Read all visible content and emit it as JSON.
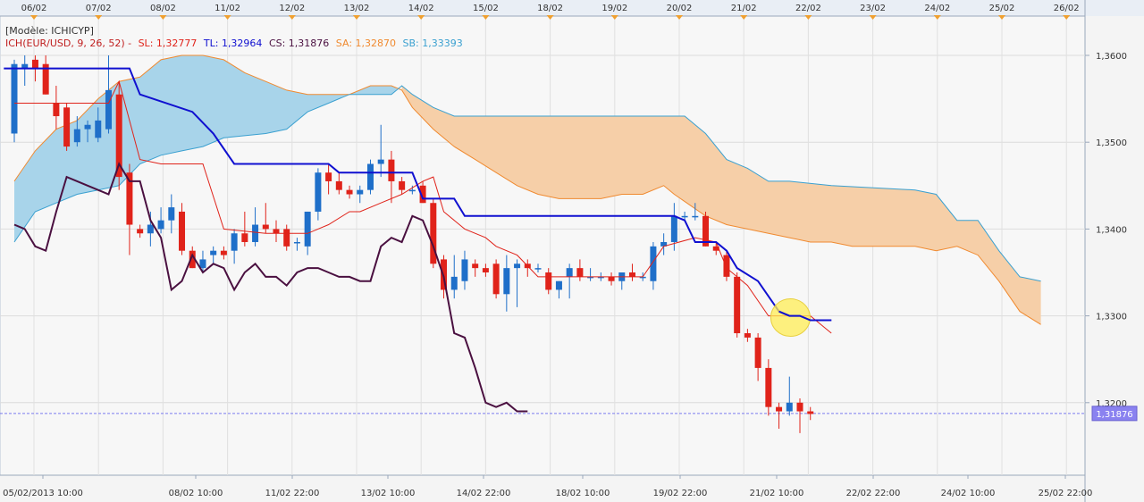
{
  "chart_data": {
    "type": "candlestick",
    "header": {
      "model_line": "[Modèle: ICHICYP]",
      "ich": "ICH(EUR/USD, 9, 26, 52) -",
      "sl": "SL: 1,32777",
      "tl": "TL: 1,32964",
      "cs": "CS: 1,31876",
      "sa": "SA: 1,32870",
      "sb": "SB: 1,33393"
    },
    "top_axis_labels": [
      "06/02",
      "07/02",
      "08/02",
      "11/02",
      "12/02",
      "13/02",
      "14/02",
      "15/02",
      "18/02",
      "19/02",
      "20/02",
      "21/02",
      "22/02",
      "23/02",
      "24/02",
      "25/02",
      "26/02"
    ],
    "bottom_axis_labels": [
      "05/02/2013 10:00",
      "08/02 10:00",
      "11/02 22:00",
      "13/02 10:00",
      "14/02 22:00",
      "18/02 10:00",
      "19/02 22:00",
      "21/02 10:00",
      "22/02 22:00",
      "24/02 10:00",
      "25/02 22:00"
    ],
    "y_ticks": [
      "1,3600",
      "1,3500",
      "1,3400",
      "1,3300",
      "1,3200"
    ],
    "y_range": [
      1.312,
      1.3665
    ],
    "last_price_label": "1,31876",
    "colors": {
      "up": "#1f6fc9",
      "down": "#e0231a",
      "tenkan": "#e0231a",
      "kijun": "#1010d0",
      "chikou": "#4a1040",
      "senkou_a": "#f08a30",
      "senkou_b": "#3aa0d0",
      "cloud_bull": "#a8d4ea",
      "cloud_bear": "#f6cfa8",
      "highlight": "#ffee55"
    },
    "candles": [
      [
        1.351,
        1.3595,
        1.35,
        1.359
      ],
      [
        1.3585,
        1.36,
        1.3565,
        1.359
      ],
      [
        1.3595,
        1.36,
        1.357,
        1.3585
      ],
      [
        1.359,
        1.36,
        1.3555,
        1.3555
      ],
      [
        1.3545,
        1.3565,
        1.3515,
        1.353
      ],
      [
        1.354,
        1.3545,
        1.349,
        1.3495
      ],
      [
        1.35,
        1.353,
        1.3495,
        1.3515
      ],
      [
        1.3515,
        1.3525,
        1.35,
        1.352
      ],
      [
        1.3505,
        1.354,
        1.35,
        1.3525
      ],
      [
        1.3515,
        1.36,
        1.351,
        1.356
      ],
      [
        1.3555,
        1.357,
        1.3445,
        1.346
      ],
      [
        1.3465,
        1.3475,
        1.337,
        1.3405
      ],
      [
        1.34,
        1.3405,
        1.339,
        1.3395
      ],
      [
        1.3395,
        1.342,
        1.338,
        1.3405
      ],
      [
        1.34,
        1.3425,
        1.3395,
        1.341
      ],
      [
        1.341,
        1.344,
        1.3395,
        1.3425
      ],
      [
        1.342,
        1.343,
        1.337,
        1.3375
      ],
      [
        1.3375,
        1.338,
        1.3355,
        1.3355
      ],
      [
        1.3355,
        1.3375,
        1.335,
        1.3365
      ],
      [
        1.337,
        1.338,
        1.336,
        1.3375
      ],
      [
        1.3375,
        1.338,
        1.3365,
        1.337
      ],
      [
        1.3375,
        1.34,
        1.336,
        1.3395
      ],
      [
        1.3395,
        1.342,
        1.338,
        1.3385
      ],
      [
        1.3385,
        1.3425,
        1.338,
        1.3405
      ],
      [
        1.3405,
        1.343,
        1.3395,
        1.34
      ],
      [
        1.34,
        1.341,
        1.3385,
        1.3395
      ],
      [
        1.34,
        1.3405,
        1.3375,
        1.338
      ],
      [
        1.3385,
        1.339,
        1.3375,
        1.3385
      ],
      [
        1.338,
        1.342,
        1.337,
        1.342
      ],
      [
        1.342,
        1.347,
        1.341,
        1.3465
      ],
      [
        1.3465,
        1.3475,
        1.344,
        1.3455
      ],
      [
        1.3455,
        1.3465,
        1.344,
        1.3445
      ],
      [
        1.3445,
        1.345,
        1.3435,
        1.344
      ],
      [
        1.344,
        1.345,
        1.343,
        1.3445
      ],
      [
        1.3445,
        1.348,
        1.344,
        1.3475
      ],
      [
        1.3475,
        1.352,
        1.346,
        1.348
      ],
      [
        1.348,
        1.349,
        1.343,
        1.3455
      ],
      [
        1.3455,
        1.346,
        1.344,
        1.3445
      ],
      [
        1.3445,
        1.345,
        1.344,
        1.3445
      ],
      [
        1.345,
        1.3455,
        1.343,
        1.343
      ],
      [
        1.343,
        1.3435,
        1.3355,
        1.336
      ],
      [
        1.3365,
        1.337,
        1.332,
        1.333
      ],
      [
        1.333,
        1.337,
        1.332,
        1.3345
      ],
      [
        1.334,
        1.3375,
        1.333,
        1.3365
      ],
      [
        1.336,
        1.3365,
        1.3345,
        1.3355
      ],
      [
        1.3355,
        1.336,
        1.3345,
        1.335
      ],
      [
        1.336,
        1.3365,
        1.332,
        1.3325
      ],
      [
        1.3325,
        1.337,
        1.3305,
        1.3355
      ],
      [
        1.3355,
        1.3365,
        1.331,
        1.336
      ],
      [
        1.336,
        1.3365,
        1.3345,
        1.3355
      ],
      [
        1.3355,
        1.336,
        1.335,
        1.3355
      ],
      [
        1.335,
        1.3355,
        1.3325,
        1.333
      ],
      [
        1.333,
        1.334,
        1.332,
        1.334
      ],
      [
        1.3345,
        1.336,
        1.332,
        1.3355
      ],
      [
        1.3355,
        1.3365,
        1.334,
        1.3345
      ],
      [
        1.3345,
        1.3355,
        1.334,
        1.3345
      ],
      [
        1.3345,
        1.335,
        1.334,
        1.3345
      ],
      [
        1.3345,
        1.335,
        1.3335,
        1.334
      ],
      [
        1.334,
        1.335,
        1.333,
        1.335
      ],
      [
        1.335,
        1.336,
        1.334,
        1.3345
      ],
      [
        1.3345,
        1.335,
        1.334,
        1.3345
      ],
      [
        1.334,
        1.3385,
        1.333,
        1.338
      ],
      [
        1.338,
        1.3395,
        1.337,
        1.3385
      ],
      [
        1.3385,
        1.343,
        1.3375,
        1.3415
      ],
      [
        1.3415,
        1.342,
        1.341,
        1.3415
      ],
      [
        1.3415,
        1.343,
        1.341,
        1.3415
      ],
      [
        1.3415,
        1.342,
        1.338,
        1.338
      ],
      [
        1.338,
        1.3385,
        1.337,
        1.3375
      ],
      [
        1.337,
        1.3375,
        1.334,
        1.3345
      ],
      [
        1.3345,
        1.335,
        1.3275,
        1.328
      ],
      [
        1.328,
        1.3285,
        1.327,
        1.3275
      ],
      [
        1.3275,
        1.328,
        1.3225,
        1.324
      ],
      [
        1.324,
        1.325,
        1.3185,
        1.3195
      ],
      [
        1.3195,
        1.32,
        1.317,
        1.319
      ],
      [
        1.319,
        1.323,
        1.3185,
        1.32
      ],
      [
        1.32,
        1.3205,
        1.3165,
        1.319
      ],
      [
        1.319,
        1.3195,
        1.318,
        1.3187
      ]
    ],
    "tenkan": [
      [
        0,
        1.3545
      ],
      [
        3,
        1.3545
      ],
      [
        6,
        1.3545
      ],
      [
        9,
        1.3545
      ],
      [
        10,
        1.357
      ],
      [
        12,
        1.348
      ],
      [
        14,
        1.3475
      ],
      [
        18,
        1.3475
      ],
      [
        20,
        1.34
      ],
      [
        24,
        1.3395
      ],
      [
        28,
        1.3395
      ],
      [
        30,
        1.3405
      ],
      [
        32,
        1.342
      ],
      [
        33,
        1.342
      ],
      [
        35,
        1.343
      ],
      [
        37,
        1.344
      ],
      [
        39,
        1.3455
      ],
      [
        40,
        1.346
      ],
      [
        41,
        1.342
      ],
      [
        43,
        1.34
      ],
      [
        45,
        1.339
      ],
      [
        46,
        1.338
      ],
      [
        48,
        1.337
      ],
      [
        50,
        1.3345
      ],
      [
        55,
        1.3345
      ],
      [
        60,
        1.3345
      ],
      [
        62,
        1.338
      ],
      [
        65,
        1.339
      ],
      [
        67,
        1.3385
      ],
      [
        68,
        1.3355
      ],
      [
        70,
        1.3335
      ],
      [
        72,
        1.33
      ],
      [
        76,
        1.33
      ],
      [
        78,
        1.328
      ]
    ],
    "kijun": [
      [
        -1,
        1.3585
      ],
      [
        11,
        1.3585
      ],
      [
        12,
        1.3555
      ],
      [
        17,
        1.3535
      ],
      [
        19,
        1.351
      ],
      [
        21,
        1.3475
      ],
      [
        30,
        1.3475
      ],
      [
        31,
        1.3465
      ],
      [
        38,
        1.3465
      ],
      [
        39,
        1.3435
      ],
      [
        42,
        1.3435
      ],
      [
        43,
        1.3415
      ],
      [
        54,
        1.3415
      ],
      [
        63,
        1.3415
      ],
      [
        64,
        1.341
      ],
      [
        65,
        1.3385
      ],
      [
        67,
        1.3385
      ],
      [
        68,
        1.3375
      ],
      [
        69,
        1.3355
      ],
      [
        71,
        1.334
      ],
      [
        73,
        1.3305
      ],
      [
        74,
        1.33
      ],
      [
        75,
        1.33
      ],
      [
        76,
        1.3295
      ],
      [
        78,
        1.3295
      ]
    ],
    "chikou": [
      [
        0,
        1.3405
      ],
      [
        1,
        1.34
      ],
      [
        2,
        1.338
      ],
      [
        3,
        1.3375
      ],
      [
        4,
        1.342
      ],
      [
        5,
        1.346
      ],
      [
        6,
        1.3455
      ],
      [
        7,
        1.345
      ],
      [
        8,
        1.3445
      ],
      [
        9,
        1.344
      ],
      [
        10,
        1.3475
      ],
      [
        11,
        1.3455
      ],
      [
        12,
        1.3455
      ],
      [
        13,
        1.341
      ],
      [
        14,
        1.339
      ],
      [
        15,
        1.333
      ],
      [
        16,
        1.334
      ],
      [
        17,
        1.337
      ],
      [
        18,
        1.335
      ],
      [
        19,
        1.336
      ],
      [
        20,
        1.3355
      ],
      [
        21,
        1.333
      ],
      [
        22,
        1.335
      ],
      [
        23,
        1.336
      ],
      [
        24,
        1.3345
      ],
      [
        25,
        1.3345
      ],
      [
        26,
        1.3335
      ],
      [
        27,
        1.335
      ],
      [
        28,
        1.3355
      ],
      [
        29,
        1.3355
      ],
      [
        30,
        1.335
      ],
      [
        31,
        1.3345
      ],
      [
        32,
        1.3345
      ],
      [
        33,
        1.334
      ],
      [
        34,
        1.334
      ],
      [
        35,
        1.338
      ],
      [
        36,
        1.339
      ],
      [
        37,
        1.3385
      ],
      [
        38,
        1.3415
      ],
      [
        39,
        1.341
      ],
      [
        40,
        1.338
      ],
      [
        41,
        1.3345
      ],
      [
        42,
        1.328
      ],
      [
        43,
        1.3275
      ],
      [
        44,
        1.324
      ],
      [
        45,
        1.32
      ],
      [
        46,
        1.3195
      ],
      [
        47,
        1.32
      ],
      [
        48,
        1.319
      ],
      [
        49,
        1.319
      ]
    ],
    "senkou_a": [
      [
        0,
        1.3455
      ],
      [
        2,
        1.349
      ],
      [
        4,
        1.3515
      ],
      [
        6,
        1.3525
      ],
      [
        8,
        1.355
      ],
      [
        10,
        1.357
      ],
      [
        12,
        1.3575
      ],
      [
        14,
        1.3595
      ],
      [
        16,
        1.36
      ],
      [
        18,
        1.36
      ],
      [
        20,
        1.3595
      ],
      [
        22,
        1.358
      ],
      [
        24,
        1.357
      ],
      [
        26,
        1.356
      ],
      [
        28,
        1.3555
      ],
      [
        30,
        1.3555
      ],
      [
        32,
        1.3555
      ],
      [
        34,
        1.3565
      ],
      [
        36,
        1.3565
      ],
      [
        37,
        1.356
      ],
      [
        38,
        1.354
      ],
      [
        40,
        1.3515
      ],
      [
        42,
        1.3495
      ],
      [
        44,
        1.348
      ],
      [
        46,
        1.3465
      ],
      [
        48,
        1.345
      ],
      [
        50,
        1.344
      ],
      [
        52,
        1.3435
      ],
      [
        54,
        1.3435
      ],
      [
        56,
        1.3435
      ],
      [
        58,
        1.344
      ],
      [
        60,
        1.344
      ],
      [
        62,
        1.345
      ],
      [
        63,
        1.344
      ],
      [
        66,
        1.3415
      ],
      [
        68,
        1.3405
      ],
      [
        70,
        1.34
      ],
      [
        72,
        1.3395
      ],
      [
        74,
        1.339
      ],
      [
        76,
        1.3385
      ],
      [
        78,
        1.3385
      ],
      [
        80,
        1.338
      ],
      [
        86,
        1.338
      ],
      [
        88,
        1.3375
      ],
      [
        90,
        1.338
      ],
      [
        92,
        1.337
      ],
      [
        94,
        1.334
      ],
      [
        96,
        1.3305
      ],
      [
        98,
        1.329
      ]
    ],
    "senkou_b": [
      [
        0,
        1.3385
      ],
      [
        2,
        1.342
      ],
      [
        4,
        1.343
      ],
      [
        6,
        1.344
      ],
      [
        8,
        1.3445
      ],
      [
        10,
        1.345
      ],
      [
        12,
        1.3475
      ],
      [
        14,
        1.3485
      ],
      [
        16,
        1.349
      ],
      [
        18,
        1.3495
      ],
      [
        20,
        1.3505
      ],
      [
        24,
        1.351
      ],
      [
        26,
        1.3515
      ],
      [
        28,
        1.3535
      ],
      [
        30,
        1.3545
      ],
      [
        32,
        1.3555
      ],
      [
        34,
        1.3555
      ],
      [
        36,
        1.3555
      ],
      [
        37,
        1.3565
      ],
      [
        38,
        1.3555
      ],
      [
        40,
        1.354
      ],
      [
        42,
        1.353
      ],
      [
        50,
        1.353
      ],
      [
        60,
        1.353
      ],
      [
        64,
        1.353
      ],
      [
        66,
        1.351
      ],
      [
        68,
        1.348
      ],
      [
        70,
        1.347
      ],
      [
        72,
        1.3455
      ],
      [
        74,
        1.3455
      ],
      [
        78,
        1.345
      ],
      [
        86,
        1.3445
      ],
      [
        88,
        1.344
      ],
      [
        90,
        1.341
      ],
      [
        92,
        1.341
      ],
      [
        94,
        1.3375
      ],
      [
        96,
        1.3345
      ],
      [
        98,
        1.334
      ]
    ],
    "highlight_circle": {
      "i": 74.1,
      "price": 1.3298
    }
  }
}
